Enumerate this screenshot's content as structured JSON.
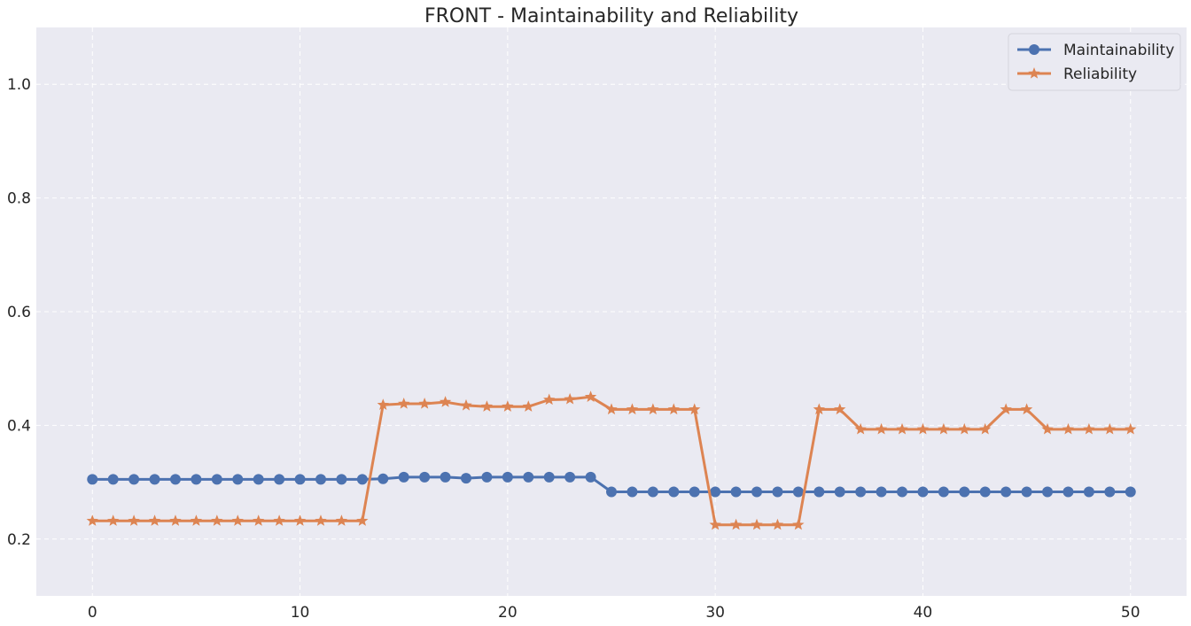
{
  "chart_data": {
    "type": "line",
    "title": "FRONT - Maintainability and Reliability",
    "xlabel": "",
    "ylabel": "",
    "xlim": [
      -2.7,
      52.7
    ],
    "ylim": [
      0.1,
      1.1
    ],
    "x_ticks": [
      0,
      10,
      20,
      30,
      40,
      50
    ],
    "y_ticks": [
      0.2,
      0.4,
      0.6,
      0.8,
      1.0
    ],
    "x_tick_labels": [
      "0",
      "10",
      "20",
      "30",
      "40",
      "50"
    ],
    "y_tick_labels": [
      "0.2",
      "0.4",
      "0.6",
      "0.8",
      "1.0"
    ],
    "grid": true,
    "legend_position": "top-right",
    "background": "#EAEAF2",
    "x": [
      0,
      1,
      2,
      3,
      4,
      5,
      6,
      7,
      8,
      9,
      10,
      11,
      12,
      13,
      14,
      15,
      16,
      17,
      18,
      19,
      20,
      21,
      22,
      23,
      24,
      25,
      26,
      27,
      28,
      29,
      30,
      31,
      32,
      33,
      34,
      35,
      36,
      37,
      38,
      39,
      40,
      41,
      42,
      43,
      44,
      45,
      46,
      47,
      48,
      49,
      50
    ],
    "series": [
      {
        "name": "Maintainability",
        "color": "#4C72B0",
        "marker": "circle",
        "values": [
          0.305,
          0.305,
          0.305,
          0.305,
          0.305,
          0.305,
          0.305,
          0.305,
          0.305,
          0.305,
          0.305,
          0.305,
          0.305,
          0.305,
          0.306,
          0.309,
          0.309,
          0.309,
          0.307,
          0.309,
          0.309,
          0.309,
          0.309,
          0.309,
          0.309,
          0.283,
          0.283,
          0.283,
          0.283,
          0.283,
          0.283,
          0.283,
          0.283,
          0.283,
          0.283,
          0.283,
          0.283,
          0.283,
          0.283,
          0.283,
          0.283,
          0.283,
          0.283,
          0.283,
          0.283,
          0.283,
          0.283,
          0.283,
          0.283,
          0.283,
          0.283
        ]
      },
      {
        "name": "Reliability",
        "color": "#DD8452",
        "marker": "star",
        "values": [
          0.232,
          0.232,
          0.232,
          0.232,
          0.232,
          0.232,
          0.232,
          0.232,
          0.232,
          0.232,
          0.232,
          0.232,
          0.232,
          0.232,
          0.436,
          0.438,
          0.438,
          0.441,
          0.435,
          0.433,
          0.433,
          0.433,
          0.445,
          0.446,
          0.45,
          0.428,
          0.428,
          0.428,
          0.428,
          0.428,
          0.225,
          0.225,
          0.225,
          0.225,
          0.225,
          0.428,
          0.428,
          0.393,
          0.393,
          0.393,
          0.393,
          0.393,
          0.393,
          0.393,
          0.428,
          0.428,
          0.393,
          0.393,
          0.393,
          0.393,
          0.393
        ]
      }
    ]
  }
}
